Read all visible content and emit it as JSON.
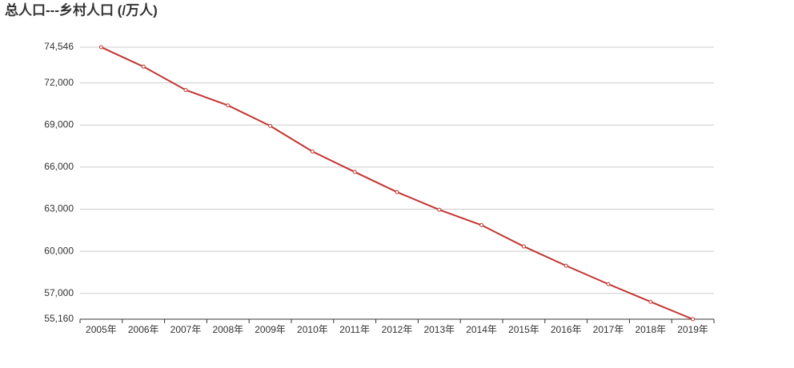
{
  "chart_data": {
    "type": "line",
    "title": "总人口---乡村人口 (/万人)",
    "categories": [
      "2005年",
      "2006年",
      "2007年",
      "2008年",
      "2009年",
      "2010年",
      "2011年",
      "2012年",
      "2013年",
      "2014年",
      "2015年",
      "2016年",
      "2017年",
      "2018年",
      "2019年"
    ],
    "series": [
      {
        "name": "乡村人口",
        "color": "#c23531",
        "values": [
          74546,
          73160,
          71496,
          70399,
          68938,
          67113,
          65656,
          64222,
          62961,
          61866,
          60346,
          58973,
          57661,
          56401,
          55160
        ]
      }
    ],
    "ylim": [
      55160,
      74546
    ],
    "yticks": [
      {
        "value": 55160,
        "label": "55,160"
      },
      {
        "value": 57000,
        "label": "57,000"
      },
      {
        "value": 60000,
        "label": "60,000"
      },
      {
        "value": 63000,
        "label": "63,000"
      },
      {
        "value": 66000,
        "label": "66,000"
      },
      {
        "value": 69000,
        "label": "69,000"
      },
      {
        "value": 72000,
        "label": "72,000"
      },
      {
        "value": 74546,
        "label": "74,546"
      }
    ],
    "grid": true
  }
}
